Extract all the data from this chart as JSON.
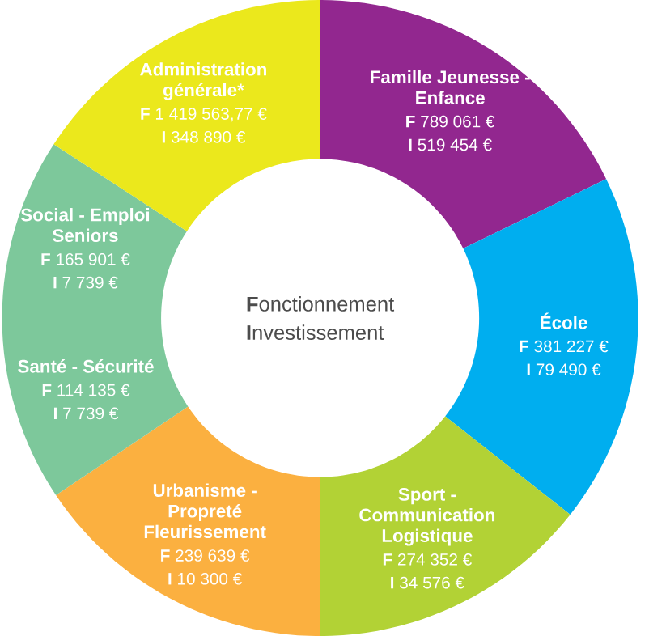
{
  "chart_data": {
    "type": "donut",
    "categories": [
      "Famille Jeunesse - Enfance",
      "École",
      "Sport - Communication Logistique",
      "Urbanisme - Propreté Fleurissement",
      "Santé - Sécurité",
      "Social - Emploi Seniors",
      "Administration générale*"
    ],
    "values": [
      17.8,
      17.8,
      14.4,
      15.6,
      9.4,
      9.2,
      15.8
    ],
    "colors": [
      "#92278f",
      "#00aeef",
      "#b2d235",
      "#fbb040",
      "#7dc89b",
      "#7dc89b",
      "#ebe81c"
    ],
    "annotations": [
      "**F**onctionnement",
      "**I**nvestissement",
      "**F** 789 061 €",
      "**I** 519 454 €",
      "**F** 381 227 €",
      "**I** 79 490 €",
      "**F** 274 352 €",
      "**I** 34 576 €",
      "**F** 239 639 €",
      "**I** 10 300 €",
      "**F** 114 135 €",
      "**I** 7 739 €",
      "**F** 165 901 €",
      "**I** 7 739 €",
      "**F** 1 419 563,77 €",
      "**I** 348 890 €"
    ]
  }
}
